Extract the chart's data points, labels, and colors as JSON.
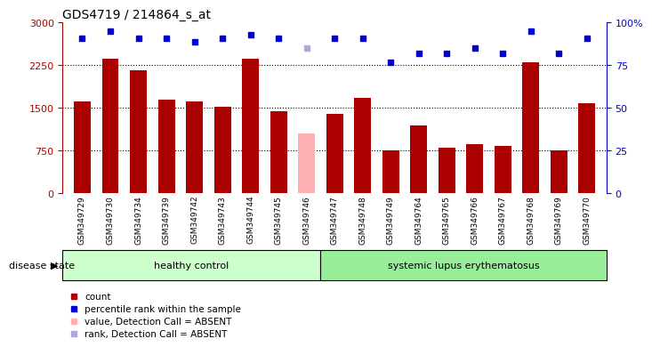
{
  "title": "GDS4719 / 214864_s_at",
  "samples": [
    "GSM349729",
    "GSM349730",
    "GSM349734",
    "GSM349739",
    "GSM349742",
    "GSM349743",
    "GSM349744",
    "GSM349745",
    "GSM349746",
    "GSM349747",
    "GSM349748",
    "GSM349749",
    "GSM349764",
    "GSM349765",
    "GSM349766",
    "GSM349767",
    "GSM349768",
    "GSM349769",
    "GSM349770"
  ],
  "counts": [
    1620,
    2370,
    2170,
    1650,
    1610,
    1520,
    2370,
    1450,
    1050,
    1400,
    1680,
    760,
    1200,
    800,
    870,
    830,
    2310,
    750,
    1590
  ],
  "absent_idx": [
    8
  ],
  "percentile_ranks": [
    91,
    95,
    91,
    91,
    89,
    91,
    93,
    91,
    85,
    91,
    91,
    77,
    82,
    82,
    85,
    82,
    95,
    82,
    91
  ],
  "absent_rank_idx": [
    8
  ],
  "healthy_count": 9,
  "ylim_left": [
    0,
    3000
  ],
  "ylim_right": [
    0,
    100
  ],
  "yticks_left": [
    0,
    750,
    1500,
    2250,
    3000
  ],
  "ytick_labels_left": [
    "0",
    "750",
    "1500",
    "2250",
    "3000"
  ],
  "yticks_right": [
    0,
    25,
    50,
    75,
    100
  ],
  "ytick_labels_right": [
    "0",
    "25",
    "50",
    "75",
    "100%"
  ],
  "bar_color_normal": "#aa0000",
  "bar_color_absent": "#ffb0b0",
  "rank_color_normal": "#0000cc",
  "rank_color_absent": "#aaaadd",
  "healthy_bg": "#ccffcc",
  "lupus_bg": "#99ee99",
  "tick_bg": "#dddddd",
  "disease_label_healthy": "healthy control",
  "disease_label_lupus": "systemic lupus erythematosus",
  "disease_state_label": "disease state",
  "legend_items": [
    {
      "color": "#aa0000",
      "label": "count"
    },
    {
      "color": "#0000cc",
      "label": "percentile rank within the sample"
    },
    {
      "color": "#ffb0b0",
      "label": "value, Detection Call = ABSENT"
    },
    {
      "color": "#aaaadd",
      "label": "rank, Detection Call = ABSENT"
    }
  ]
}
